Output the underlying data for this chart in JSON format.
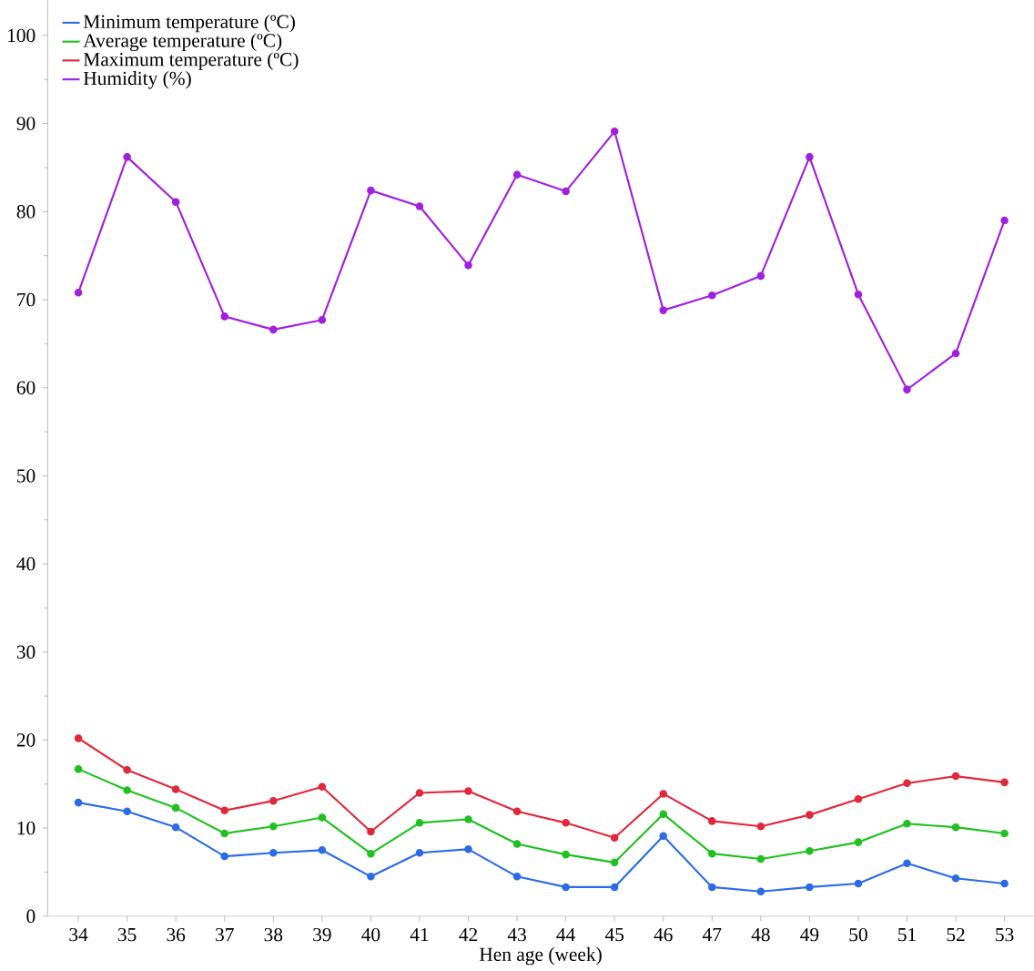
{
  "chart_data": {
    "type": "line",
    "xlabel": "Hen age (week)",
    "x": [
      34,
      35,
      36,
      37,
      38,
      39,
      40,
      41,
      42,
      43,
      44,
      45,
      46,
      47,
      48,
      49,
      50,
      51,
      52,
      53
    ],
    "xlim": [
      33.37,
      53.6
    ],
    "xticks": [
      34,
      35,
      36,
      37,
      38,
      39,
      40,
      41,
      42,
      43,
      44,
      45,
      46,
      47,
      48,
      49,
      50,
      51,
      52,
      53
    ],
    "ylim": [
      0,
      104
    ],
    "yticks": [
      0,
      10,
      20,
      30,
      40,
      50,
      60,
      70,
      80,
      90,
      100
    ],
    "marker": "circle",
    "line_style": "solid",
    "legend": "top left",
    "grid": false,
    "series": [
      {
        "name": "Minimum temperature (ºC)",
        "color": "#2b6be6",
        "values": [
          12.9,
          11.9,
          10.1,
          6.8,
          7.2,
          7.5,
          4.5,
          7.2,
          7.6,
          4.5,
          3.3,
          3.3,
          9.1,
          3.3,
          2.8,
          3.3,
          3.7,
          6.0,
          4.3,
          3.7
        ]
      },
      {
        "name": "Average temperature (ºC)",
        "color": "#1fc01f",
        "values": [
          16.7,
          14.3,
          12.3,
          9.4,
          10.2,
          11.2,
          7.1,
          10.6,
          11.0,
          8.2,
          7.0,
          6.1,
          11.6,
          7.1,
          6.5,
          7.4,
          8.4,
          10.5,
          10.1,
          9.4
        ]
      },
      {
        "name": "Maximum temperature (ºC)",
        "color": "#e0283c",
        "values": [
          20.2,
          16.6,
          14.4,
          12.0,
          13.1,
          14.7,
          9.6,
          14.0,
          14.2,
          11.9,
          10.6,
          8.9,
          13.9,
          10.8,
          10.2,
          11.5,
          13.3,
          15.1,
          15.9,
          15.2
        ]
      },
      {
        "name": "Humidity (%)",
        "color": "#a020e0",
        "values": [
          70.8,
          86.2,
          81.1,
          68.1,
          66.6,
          67.7,
          82.4,
          80.6,
          73.9,
          84.2,
          82.3,
          89.1,
          68.8,
          70.5,
          72.7,
          86.2,
          70.6,
          59.8,
          63.9,
          79.0
        ]
      }
    ]
  }
}
